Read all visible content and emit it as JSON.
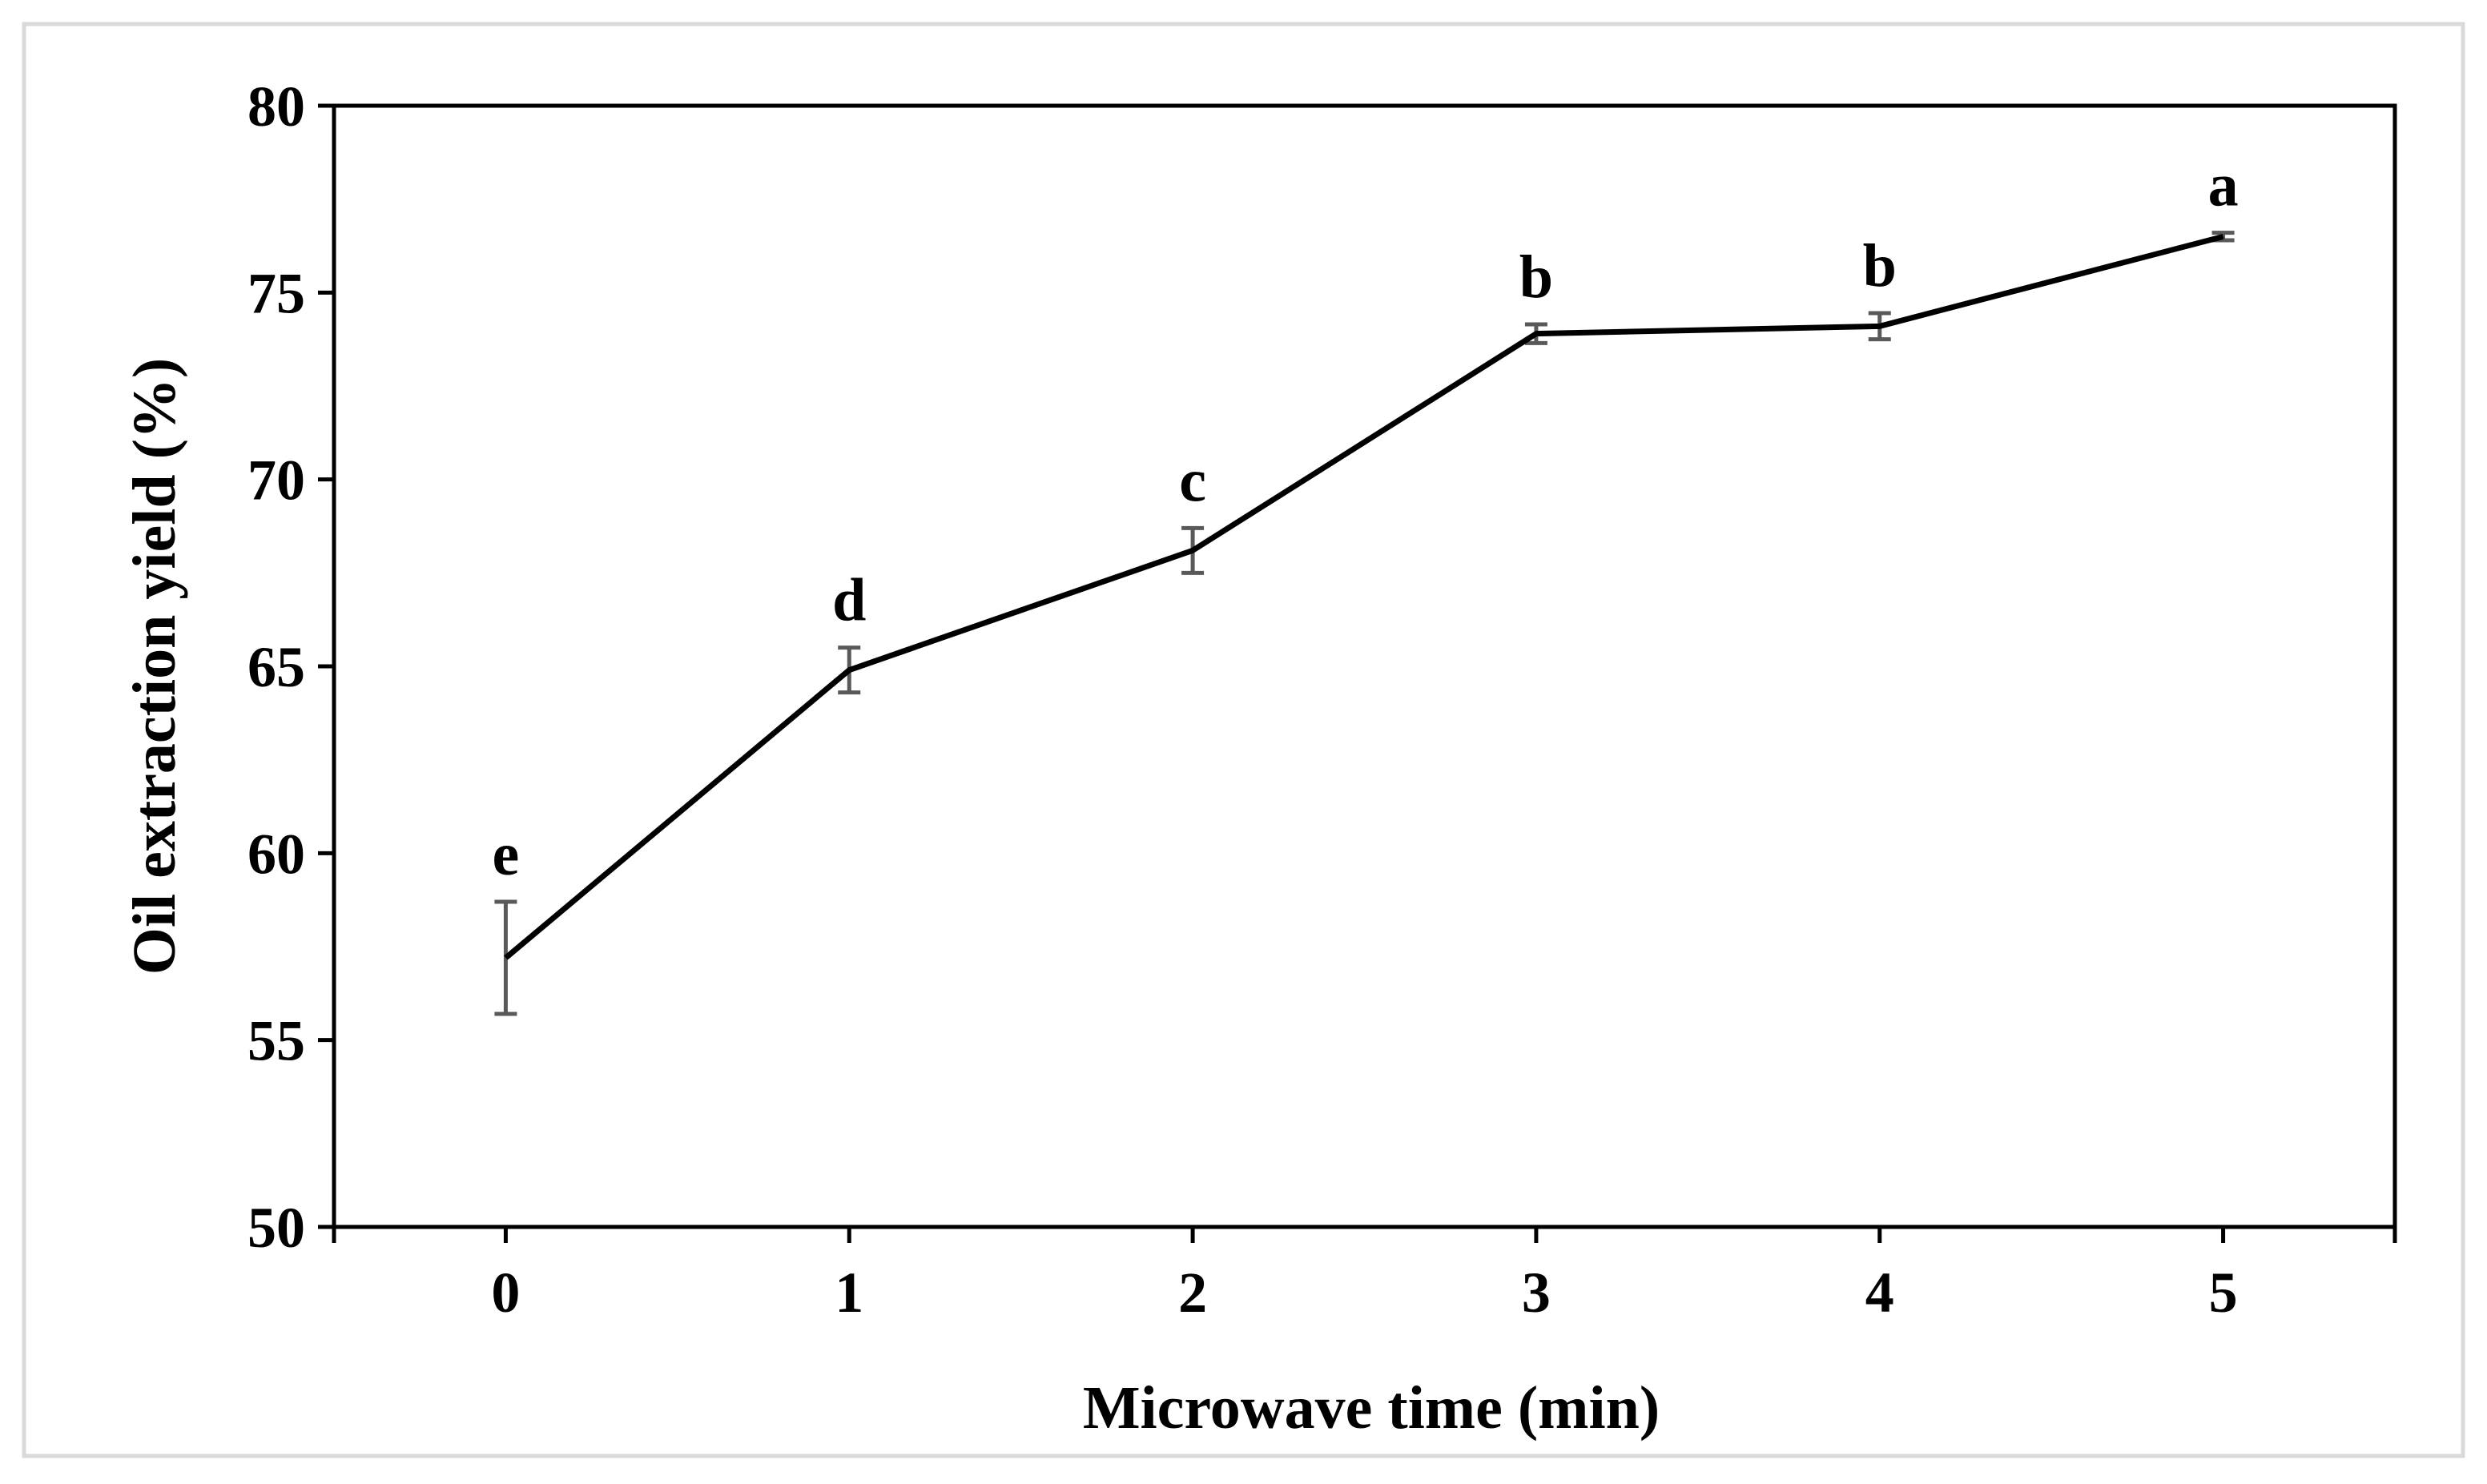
{
  "chart_data": {
    "type": "line",
    "title": "",
    "xlabel": "Microwave time (min)",
    "ylabel": "Oil extraction yield (%)",
    "x": [
      0,
      1,
      2,
      3,
      4,
      5
    ],
    "x_tick_labels": [
      "0",
      "1",
      "2",
      "3",
      "4",
      "5"
    ],
    "xlim": [
      -0.5,
      5.5
    ],
    "ylim": [
      50,
      80
    ],
    "y_ticks": [
      50,
      55,
      60,
      65,
      70,
      75,
      80
    ],
    "y_tick_labels": [
      "50",
      "55",
      "60",
      "65",
      "70",
      "75",
      "80"
    ],
    "grid": false,
    "legend": "none",
    "series": [
      {
        "name": "Oil extraction yield",
        "values": [
          57.2,
          64.9,
          68.1,
          73.9,
          74.1,
          76.5
        ],
        "errors": [
          1.5,
          0.6,
          0.6,
          0.25,
          0.35,
          0.1
        ],
        "significance_letters": [
          "e",
          "d",
          "c",
          "b",
          "b",
          "a"
        ]
      }
    ]
  },
  "colors": {
    "line": "#000000",
    "error_bar": "#595959",
    "axis": "#000000",
    "frame_border": "#d9d9d9",
    "background": "#ffffff"
  }
}
